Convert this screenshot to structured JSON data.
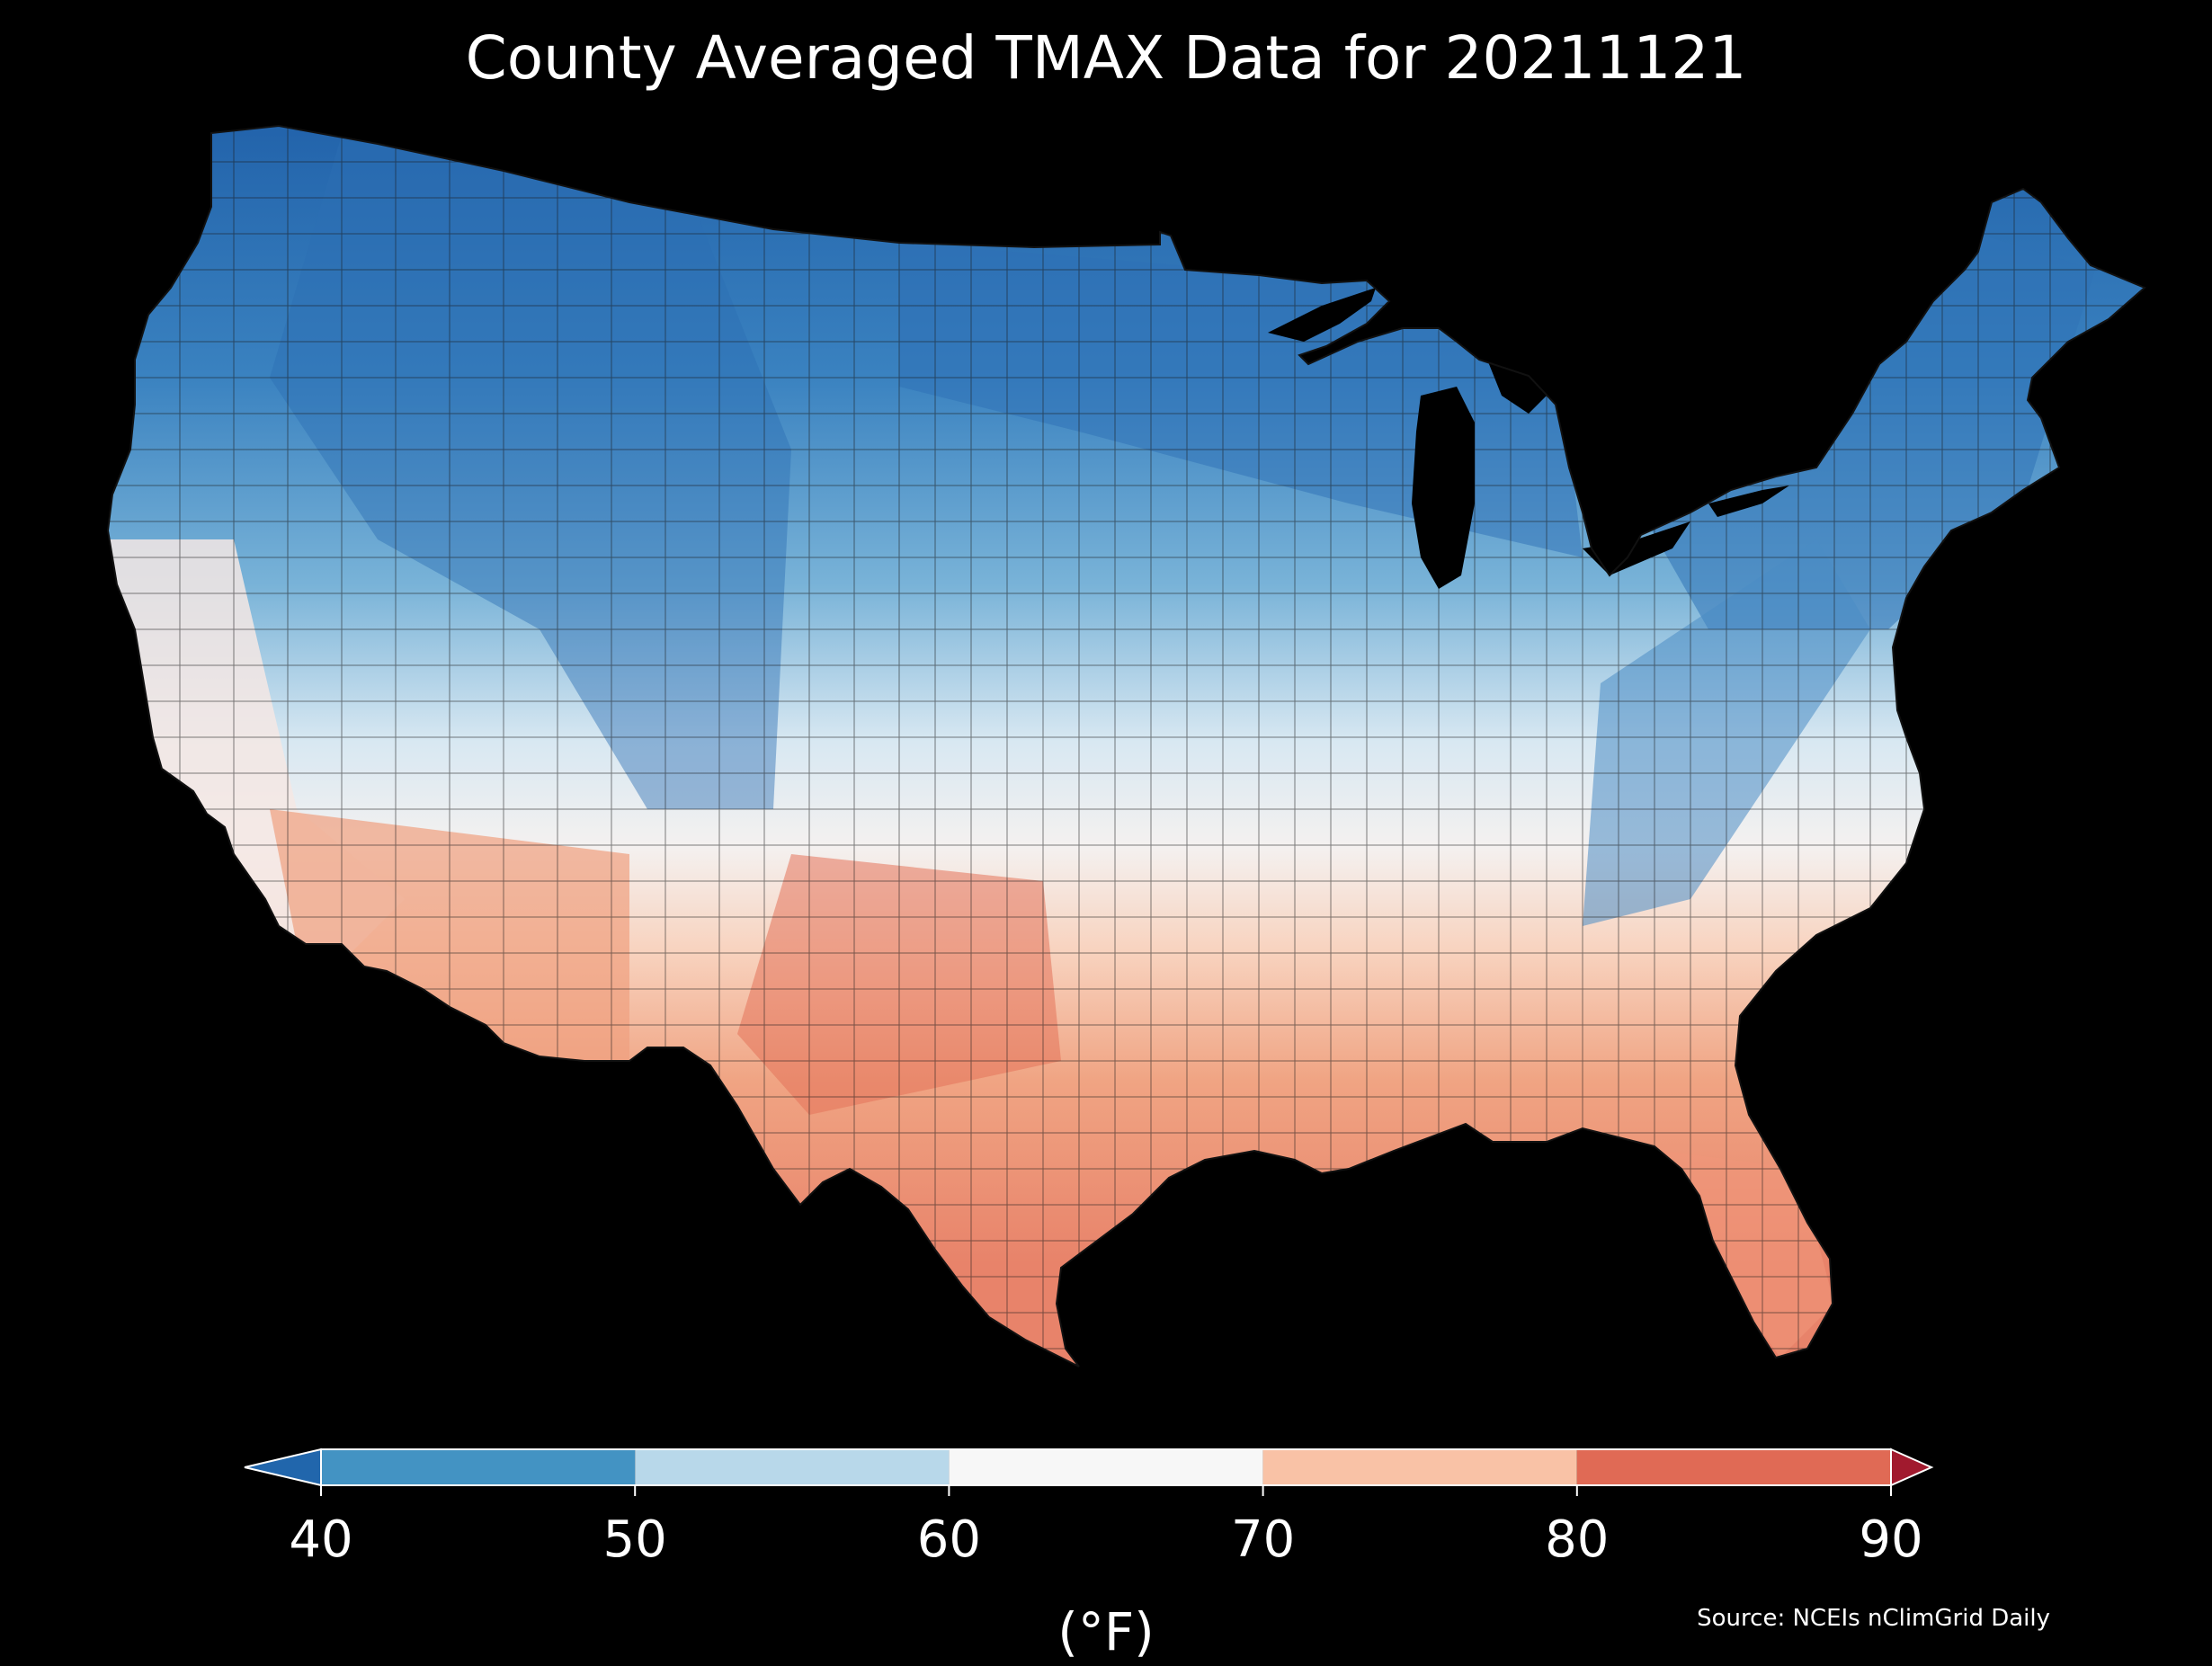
{
  "title": "County Averaged TMAX Data for 20211121",
  "colorbar": {
    "ticks": [
      "40",
      "50",
      "60",
      "70",
      "80",
      "90"
    ],
    "tick_values": [
      40,
      50,
      60,
      70,
      80,
      90
    ],
    "unit_label": "(°F)",
    "bins": [
      {
        "from": 40,
        "to": 50,
        "color": "#4393c3"
      },
      {
        "from": 50,
        "to": 60,
        "color": "#b8d8ea"
      },
      {
        "from": 60,
        "to": 70,
        "color": "#f7f7f7"
      },
      {
        "from": 70,
        "to": 80,
        "color": "#f9c2a6"
      },
      {
        "from": 80,
        "to": 90,
        "color": "#e06a55"
      }
    ],
    "under_color": "#2166ac",
    "over_color": "#a11a2e"
  },
  "source": "Source: NCEIs nClimGrid Daily",
  "map_colors": {
    "background": "#000000",
    "county_border": "#1a1a1a"
  }
}
